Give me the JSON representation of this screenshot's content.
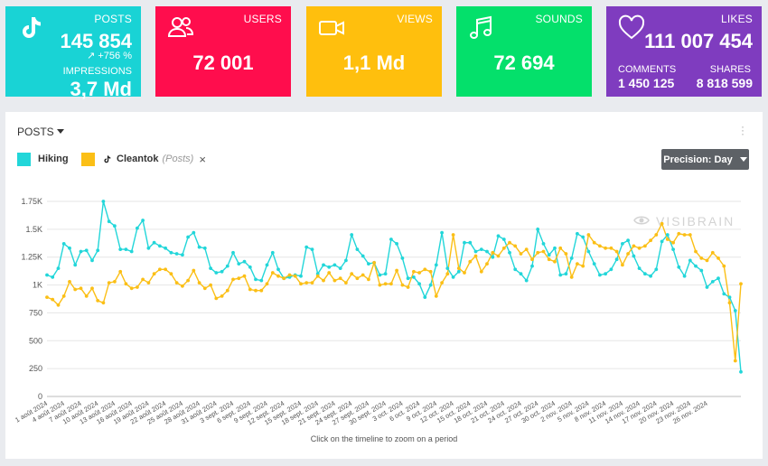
{
  "cards": {
    "posts": {
      "label": "POSTS",
      "value": "145 854",
      "trend": "+756 %",
      "impressions_label": "IMPRESSIONS",
      "impressions_value": "3,7 Md",
      "icon": "tiktok-icon",
      "color": "#19d3d5"
    },
    "users": {
      "label": "USERS",
      "value": "72 001",
      "icon": "users-icon",
      "color": "#ff0d4d"
    },
    "views": {
      "label": "VIEWS",
      "value": "1,1 Md",
      "icon": "video-camera-icon",
      "color": "#ffbf0d"
    },
    "sounds": {
      "label": "SOUNDS",
      "value": "72 694",
      "icon": "music-note-icon",
      "color": "#04e06b"
    },
    "likes": {
      "label": "LIKES",
      "value": "111 007 454",
      "comments_label": "COMMENTS",
      "comments_value": "1 450 125",
      "shares_label": "SHARES",
      "shares_value": "8 818 599",
      "icon": "heart-icon",
      "color": "#7f3cbf"
    }
  },
  "panel": {
    "title": "POSTS",
    "precision_label": "Precision: Day",
    "hint": "Click on the timeline to zoom on a period",
    "watermark": "VISIBRAIN",
    "legend": [
      {
        "name": "Hiking",
        "color": "#22d6d9"
      },
      {
        "name": "Cleantok",
        "sub": "(Posts)",
        "remove": "×",
        "color": "#fbbf16"
      }
    ]
  },
  "chart_data": {
    "type": "line",
    "ylim": [
      0,
      1750
    ],
    "yticks": [
      0,
      250,
      500,
      750,
      1000,
      1250,
      1500,
      1750
    ],
    "ytick_labels": [
      "0",
      "250",
      "500",
      "750",
      "1K",
      "1.25K",
      "1.5K",
      "1.75K"
    ],
    "xtick_labels": [
      "1 août 2024",
      "4 août 2024",
      "7 août 2024",
      "10 août 2024",
      "13 août 2024",
      "16 août 2024",
      "19 août 2024",
      "22 août 2024",
      "25 août 2024",
      "28 août 2024",
      "31 août 2024",
      "3 sept. 2024",
      "6 sept. 2024",
      "9 sept. 2024",
      "12 sept. 2024",
      "15 sept. 2024",
      "18 sept. 2024",
      "21 sept. 2024",
      "24 sept. 2024",
      "27 sept. 2024",
      "30 sept. 2024",
      "3 oct. 2024",
      "6 oct. 2024",
      "9 oct. 2024",
      "12 oct. 2024",
      "15 oct. 2024",
      "18 oct. 2024",
      "21 oct. 2024",
      "24 oct. 2024",
      "27 oct. 2024",
      "30 oct. 2024",
      "2 nov. 2024",
      "5 nov. 2024",
      "8 nov. 2024",
      "11 nov. 2024",
      "14 nov. 2024",
      "17 nov. 2024",
      "20 nov. 2024",
      "23 nov. 2024",
      "26 nov. 2024"
    ],
    "series": [
      {
        "name": "Hiking",
        "color": "#22d6d9",
        "values": [
          1090,
          1070,
          1150,
          1370,
          1330,
          1180,
          1300,
          1310,
          1220,
          1310,
          1750,
          1570,
          1530,
          1320,
          1320,
          1300,
          1510,
          1580,
          1330,
          1380,
          1350,
          1330,
          1290,
          1280,
          1270,
          1430,
          1470,
          1340,
          1330,
          1150,
          1110,
          1120,
          1170,
          1290,
          1190,
          1210,
          1160,
          1050,
          1040,
          1180,
          1290,
          1140,
          1060,
          1070,
          1090,
          1080,
          1340,
          1320,
          1100,
          1180,
          1160,
          1180,
          1150,
          1220,
          1450,
          1320,
          1260,
          1190,
          1200,
          1090,
          1100,
          1410,
          1370,
          1240,
          1060,
          1070,
          1010,
          890,
          1000,
          1180,
          1470,
          1150,
          1070,
          1120,
          1380,
          1380,
          1300,
          1320,
          1300,
          1250,
          1440,
          1410,
          1290,
          1140,
          1100,
          1040,
          1170,
          1500,
          1370,
          1270,
          1330,
          1090,
          1100,
          1240,
          1460,
          1430,
          1300,
          1190,
          1090,
          1100,
          1140,
          1230,
          1370,
          1400,
          1260,
          1150,
          1100,
          1080,
          1140,
          1390,
          1450,
          1320,
          1160,
          1080,
          1220,
          1170,
          1130,
          980,
          1030,
          1060,
          920,
          890,
          770,
          220
        ]
      },
      {
        "name": "Cleantok",
        "color": "#fbbf16",
        "values": [
          890,
          870,
          820,
          900,
          1030,
          960,
          970,
          900,
          970,
          860,
          840,
          1020,
          1030,
          1120,
          1010,
          970,
          980,
          1050,
          1020,
          1100,
          1140,
          1140,
          1100,
          1020,
          990,
          1040,
          1130,
          1020,
          970,
          1000,
          880,
          900,
          950,
          1050,
          1060,
          1080,
          960,
          950,
          950,
          1010,
          1110,
          1080,
          1060,
          1090,
          1080,
          1010,
          1020,
          1020,
          1080,
          1040,
          1110,
          1040,
          1060,
          1020,
          1100,
          1060,
          1090,
          1050,
          1200,
          1000,
          1010,
          1010,
          1130,
          1000,
          980,
          1120,
          1110,
          1140,
          1120,
          900,
          1020,
          1100,
          1450,
          1150,
          1110,
          1210,
          1260,
          1120,
          1190,
          1290,
          1260,
          1330,
          1380,
          1350,
          1280,
          1320,
          1230,
          1290,
          1300,
          1230,
          1210,
          1330,
          1280,
          1070,
          1190,
          1170,
          1450,
          1380,
          1350,
          1330,
          1330,
          1300,
          1180,
          1280,
          1350,
          1330,
          1350,
          1400,
          1450,
          1550,
          1410,
          1380,
          1460,
          1450,
          1450,
          1300,
          1240,
          1220,
          1290,
          1240,
          1170,
          840,
          320,
          1010
        ]
      }
    ]
  }
}
